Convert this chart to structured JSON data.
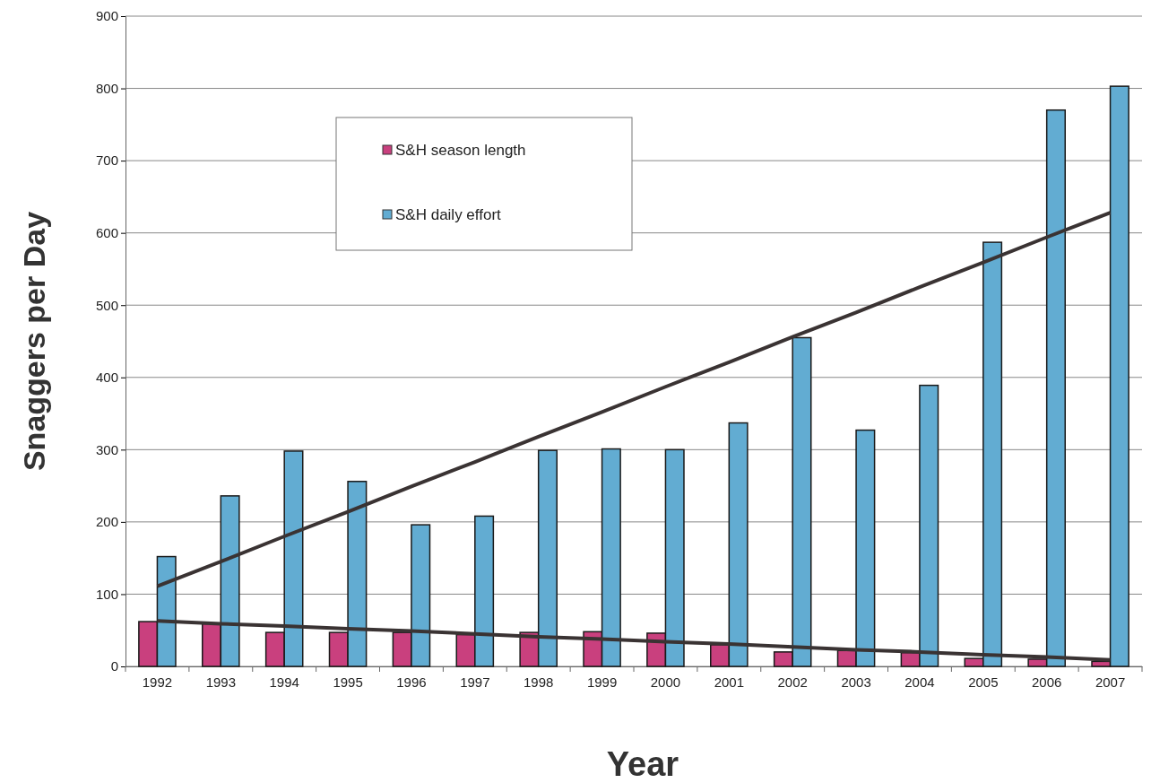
{
  "chart_data": {
    "type": "bar",
    "xlabel": "Year",
    "ylabel": "Snaggers per Day",
    "categories": [
      "1992",
      "1993",
      "1994",
      "1995",
      "1996",
      "1997",
      "1998",
      "1999",
      "2000",
      "2001",
      "2002",
      "2003",
      "2004",
      "2005",
      "2006",
      "2007"
    ],
    "series": [
      {
        "name": "S&H season length",
        "color": "#c9407e",
        "values": [
          62,
          59,
          47,
          47,
          47,
          44,
          47,
          48,
          46,
          30,
          20,
          22,
          19,
          11,
          10,
          7
        ]
      },
      {
        "name": "S&H daily effort",
        "color": "#62acd2",
        "values": [
          152,
          236,
          298,
          256,
          196,
          208,
          299,
          301,
          300,
          337,
          455,
          327,
          389,
          587,
          770,
          803
        ]
      },
      {
        "type": "line",
        "color": "#3a3333",
        "values": [
          111,
          145,
          180,
          214,
          249,
          283,
          318,
          352,
          387,
          421,
          456,
          490,
          525,
          559,
          594,
          628
        ]
      },
      {
        "type": "line",
        "color": "#3a3333",
        "values": [
          63,
          59,
          56,
          52,
          49,
          45,
          41,
          38,
          34,
          31,
          27,
          23,
          20,
          16,
          13,
          9
        ]
      }
    ],
    "ylim": [
      0,
      900
    ],
    "yticks": [
      0,
      100,
      200,
      300,
      400,
      500,
      600,
      700,
      800,
      900
    ],
    "grid": "y",
    "legend": "top left",
    "marker": "none",
    "line_style": "solid"
  }
}
